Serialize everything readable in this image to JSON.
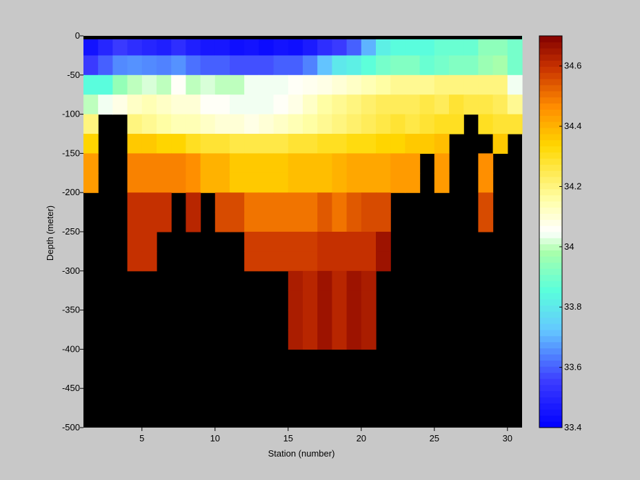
{
  "chart_data": {
    "type": "heatmap",
    "xlabel": "Station (number)",
    "ylabel": "Depth (meter)",
    "x_ticks": [
      5,
      10,
      15,
      20,
      25,
      30
    ],
    "y_ticks": [
      0,
      -50,
      -100,
      -150,
      -200,
      -250,
      -300,
      -350,
      -400,
      -450,
      -500
    ],
    "xlim": [
      1,
      31
    ],
    "ylim": [
      -500,
      0
    ],
    "stations": [
      1,
      2,
      3,
      4,
      5,
      6,
      7,
      8,
      9,
      10,
      11,
      12,
      13,
      14,
      15,
      16,
      17,
      18,
      19,
      20,
      21,
      22,
      23,
      24,
      25,
      26,
      27,
      28,
      29,
      30
    ],
    "depth_bins": [
      [
        0,
        -25
      ],
      [
        -25,
        -50
      ],
      [
        -50,
        -75
      ],
      [
        -75,
        -100
      ],
      [
        -100,
        -125
      ],
      [
        -125,
        -150
      ],
      [
        -150,
        -175
      ],
      [
        -175,
        -200
      ],
      [
        -200,
        -225
      ],
      [
        -225,
        -250
      ],
      [
        -250,
        -275
      ],
      [
        -275,
        -300
      ],
      [
        -300,
        -325
      ],
      [
        -325,
        -350
      ],
      [
        -350,
        -375
      ],
      [
        -375,
        -400
      ]
    ],
    "values": [
      [
        33.45,
        33.5,
        33.55,
        33.52,
        33.5,
        33.48,
        33.52,
        33.48,
        33.46,
        33.46,
        33.44,
        33.45,
        33.43,
        33.45,
        33.44,
        33.47,
        33.52,
        33.55,
        33.6,
        33.7,
        33.82,
        33.85,
        33.85,
        33.85,
        33.88,
        33.88,
        33.88,
        33.94,
        33.94,
        33.9
      ],
      [
        33.55,
        33.6,
        33.65,
        33.66,
        33.65,
        33.64,
        33.66,
        33.62,
        33.6,
        33.6,
        33.58,
        33.58,
        33.58,
        33.6,
        33.6,
        33.64,
        33.72,
        33.8,
        33.82,
        33.86,
        33.9,
        33.92,
        33.92,
        33.88,
        33.9,
        33.92,
        33.92,
        33.96,
        33.98,
        33.9
      ],
      [
        33.85,
        33.85,
        33.95,
        34.0,
        34.02,
        34.0,
        34.06,
        34.0,
        34.02,
        34.0,
        34.0,
        34.04,
        34.04,
        34.04,
        34.06,
        34.07,
        34.08,
        34.1,
        34.12,
        34.14,
        34.16,
        34.18,
        34.18,
        34.18,
        34.2,
        34.2,
        34.2,
        34.2,
        34.2,
        34.04
      ],
      [
        34.0,
        34.04,
        34.08,
        34.12,
        34.14,
        34.12,
        34.1,
        34.1,
        34.06,
        34.06,
        34.04,
        34.04,
        34.04,
        34.06,
        34.08,
        34.12,
        34.16,
        34.18,
        34.2,
        34.22,
        34.24,
        34.24,
        34.24,
        34.26,
        34.24,
        34.28,
        34.26,
        34.26,
        34.24,
        34.18
      ],
      [
        34.2,
        null,
        null,
        34.2,
        34.18,
        34.16,
        34.14,
        34.14,
        34.12,
        34.1,
        34.1,
        34.08,
        34.1,
        34.12,
        34.14,
        34.16,
        34.18,
        34.2,
        34.22,
        34.24,
        34.26,
        34.28,
        34.26,
        34.28,
        34.3,
        34.3,
        null,
        34.3,
        34.28,
        34.28
      ],
      [
        34.34,
        null,
        null,
        34.36,
        34.36,
        34.34,
        34.34,
        34.3,
        34.28,
        34.28,
        34.26,
        34.26,
        34.26,
        34.26,
        34.28,
        34.28,
        34.3,
        34.3,
        34.32,
        34.32,
        34.34,
        34.34,
        34.36,
        34.36,
        34.38,
        null,
        null,
        null,
        34.36,
        null
      ],
      [
        34.44,
        null,
        null,
        34.48,
        34.48,
        34.48,
        34.48,
        34.46,
        34.4,
        34.4,
        34.36,
        34.36,
        34.36,
        34.36,
        34.38,
        34.38,
        34.38,
        34.4,
        34.42,
        34.42,
        34.42,
        34.44,
        34.44,
        null,
        34.44,
        null,
        null,
        34.46,
        null,
        null
      ],
      [
        34.44,
        null,
        null,
        34.48,
        34.48,
        34.48,
        34.48,
        34.46,
        34.4,
        34.4,
        34.36,
        34.36,
        34.36,
        34.36,
        34.38,
        34.38,
        34.38,
        34.4,
        34.42,
        34.42,
        34.42,
        34.44,
        34.44,
        null,
        34.44,
        null,
        null,
        34.46,
        null,
        null
      ],
      [
        null,
        null,
        null,
        34.6,
        34.6,
        34.6,
        null,
        34.62,
        null,
        34.56,
        34.56,
        34.5,
        34.5,
        34.5,
        34.5,
        34.5,
        34.54,
        34.5,
        34.54,
        34.56,
        34.56,
        null,
        null,
        null,
        null,
        null,
        null,
        34.56,
        null,
        null
      ],
      [
        null,
        null,
        null,
        34.6,
        34.6,
        34.6,
        null,
        34.62,
        null,
        34.56,
        34.56,
        34.5,
        34.5,
        34.5,
        34.5,
        34.5,
        34.54,
        34.5,
        34.54,
        34.56,
        34.56,
        null,
        null,
        null,
        null,
        null,
        null,
        34.56,
        null,
        null
      ],
      [
        null,
        null,
        null,
        34.6,
        34.6,
        null,
        null,
        null,
        null,
        null,
        null,
        34.58,
        34.58,
        34.58,
        34.58,
        34.58,
        34.6,
        34.6,
        34.6,
        34.6,
        34.66,
        null,
        null,
        null,
        null,
        null,
        null,
        null,
        null,
        null
      ],
      [
        null,
        null,
        null,
        34.6,
        34.6,
        null,
        null,
        null,
        null,
        null,
        null,
        34.58,
        34.58,
        34.58,
        34.58,
        34.58,
        34.6,
        34.6,
        34.6,
        34.6,
        34.66,
        null,
        null,
        null,
        null,
        null,
        null,
        null,
        null,
        null
      ],
      [
        null,
        null,
        null,
        null,
        null,
        null,
        null,
        null,
        null,
        null,
        null,
        null,
        null,
        null,
        34.64,
        34.62,
        34.66,
        34.62,
        34.66,
        34.64,
        null,
        null,
        null,
        null,
        null,
        null,
        null,
        null,
        null,
        null
      ],
      [
        null,
        null,
        null,
        null,
        null,
        null,
        null,
        null,
        null,
        null,
        null,
        null,
        null,
        null,
        34.64,
        34.62,
        34.66,
        34.62,
        34.66,
        34.64,
        null,
        null,
        null,
        null,
        null,
        null,
        null,
        null,
        null,
        null
      ],
      [
        null,
        null,
        null,
        null,
        null,
        null,
        null,
        null,
        null,
        null,
        null,
        null,
        null,
        null,
        34.64,
        34.62,
        34.66,
        34.62,
        34.66,
        34.64,
        null,
        null,
        null,
        null,
        null,
        null,
        null,
        null,
        null,
        null
      ],
      [
        null,
        null,
        null,
        null,
        null,
        null,
        null,
        null,
        null,
        null,
        null,
        null,
        null,
        null,
        34.64,
        34.62,
        34.66,
        34.62,
        34.66,
        34.64,
        null,
        null,
        null,
        null,
        null,
        null,
        null,
        null,
        null,
        null
      ]
    ],
    "colorbar": {
      "range": [
        33.4,
        34.7
      ],
      "ticks": [
        33.4,
        33.6,
        33.8,
        34,
        34.2,
        34.4,
        34.6
      ],
      "tick_labels": [
        "33.4",
        "33.6",
        "33.8",
        "34",
        "34.2",
        "34.4",
        "34.6"
      ],
      "colormap": "jet-like (blue → cyan → white → yellow → orange → dark red)"
    },
    "missing_color": "#000000",
    "background_color": "#c8c8c8"
  }
}
